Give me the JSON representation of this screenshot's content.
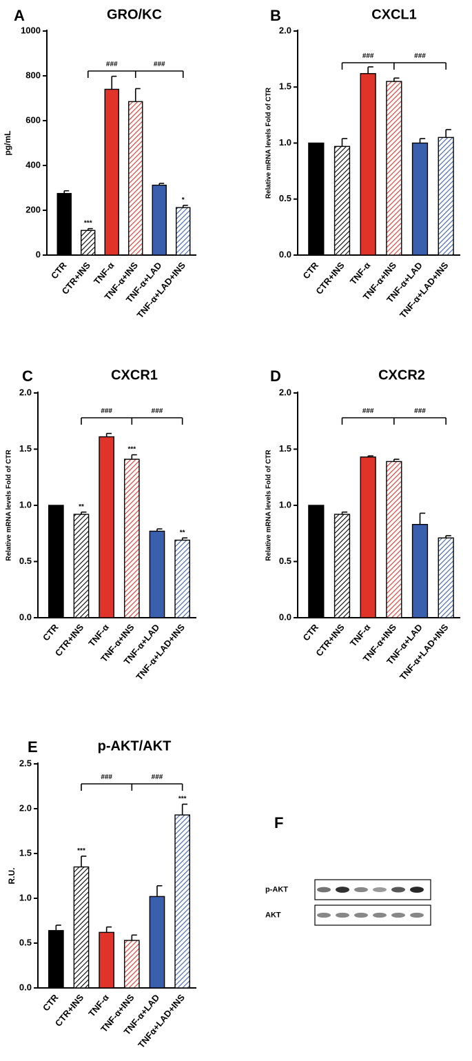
{
  "colors": {
    "black": "#000000",
    "red": "#e0342a",
    "blue": "#3a5fad",
    "hatch_red": "#e0342a",
    "hatch_blue": "#3a5fad",
    "hatch_black": "#000000"
  },
  "chart_data": [
    {
      "letter": "A",
      "type": "bar",
      "title": "GRO/KC",
      "ylabel": "pg/mL",
      "ylim": [
        0,
        1000
      ],
      "yticks": [
        "0",
        "200",
        "400",
        "600",
        "800",
        "1000"
      ],
      "categories": [
        "CTR",
        "CTR+INS",
        "TNF-α",
        "TNF-α+INS",
        "TNF-α+LAD",
        "TNF-α+LAD+INS"
      ],
      "values": [
        275,
        110,
        740,
        685,
        312,
        212
      ],
      "errors": [
        12,
        8,
        58,
        58,
        8,
        10
      ],
      "annotations": [
        "",
        "***",
        "",
        "",
        "",
        "*"
      ],
      "brackets": [
        "###",
        "###"
      ]
    },
    {
      "letter": "B",
      "type": "bar",
      "title": "CXCL1",
      "ylabel": "Relative mRNA levels Fold of CTR",
      "ylim": [
        0,
        2.0
      ],
      "yticks": [
        "0.0",
        "0.5",
        "1.0",
        "1.5",
        "2.0"
      ],
      "categories": [
        "CTR",
        "CTR+INS",
        "TNF-α",
        "TNF-α+INS",
        "TNF-α+LAD",
        "TNF-α+LAD+INS"
      ],
      "values": [
        1.0,
        0.97,
        1.62,
        1.55,
        1.0,
        1.05
      ],
      "errors": [
        0,
        0.07,
        0.06,
        0.03,
        0.04,
        0.07
      ],
      "annotations": [
        "",
        "",
        "",
        "",
        "",
        ""
      ],
      "brackets": [
        "###",
        "###"
      ]
    },
    {
      "letter": "C",
      "type": "bar",
      "title": "CXCR1",
      "ylabel": "Relative mRNA levels Fold of CTR",
      "ylim": [
        0,
        2.0
      ],
      "yticks": [
        "0.0",
        "0.5",
        "1.0",
        "1.5",
        "2.0"
      ],
      "categories": [
        "CTR",
        "CTR+INS",
        "TNF-α",
        "TNF-α+INS",
        "TNF-α+LAD",
        "TNF-α+LAD+INS"
      ],
      "values": [
        1.0,
        0.92,
        1.61,
        1.41,
        0.77,
        0.69
      ],
      "errors": [
        0,
        0.02,
        0.03,
        0.04,
        0.02,
        0.02
      ],
      "annotations": [
        "",
        "**",
        "",
        "***",
        "",
        "**"
      ],
      "brackets": [
        "###",
        "###"
      ]
    },
    {
      "letter": "D",
      "type": "bar",
      "title": "CXCR2",
      "ylabel": "Relative mRNA levels Fold of CTR",
      "ylim": [
        0,
        2.0
      ],
      "yticks": [
        "0.0",
        "0.5",
        "1.0",
        "1.5",
        "2.0"
      ],
      "categories": [
        "CTR",
        "CTR+INS",
        "TNF-α",
        "TNF-α+INS",
        "TNF-α+LAD",
        "TNF-α+LAD+INS"
      ],
      "values": [
        1.0,
        0.92,
        1.43,
        1.39,
        0.83,
        0.71
      ],
      "errors": [
        0,
        0.02,
        0.01,
        0.02,
        0.1,
        0.02
      ],
      "annotations": [
        "",
        "",
        "",
        "",
        "",
        ""
      ],
      "brackets": [
        "###",
        "###"
      ]
    },
    {
      "letter": "E",
      "type": "bar",
      "title": "p-AKT/AKT",
      "ylabel": "R.U.",
      "ylim": [
        0,
        2.5
      ],
      "yticks": [
        "0.0",
        "0.5",
        "1.0",
        "1.5",
        "2.0",
        "2.5"
      ],
      "categories": [
        "CTR",
        "CTR+INS",
        "TNF-α",
        "TNF-α+INS",
        "TNF-α+LAD",
        "TNFα+LAD+INS"
      ],
      "values": [
        0.64,
        1.35,
        0.62,
        0.53,
        1.02,
        1.93
      ],
      "errors": [
        0.06,
        0.12,
        0.06,
        0.06,
        0.12,
        0.12
      ],
      "annotations": [
        "",
        "***",
        "",
        "",
        "",
        "***"
      ],
      "brackets": [
        "###",
        "###"
      ]
    }
  ],
  "blot": {
    "letter": "F",
    "rows": [
      {
        "label": "p-AKT",
        "intensities": [
          0.55,
          0.9,
          0.45,
          0.35,
          0.7,
          0.95
        ]
      },
      {
        "label": "AKT",
        "intensities": [
          0.45,
          0.45,
          0.45,
          0.45,
          0.45,
          0.45
        ]
      }
    ]
  }
}
